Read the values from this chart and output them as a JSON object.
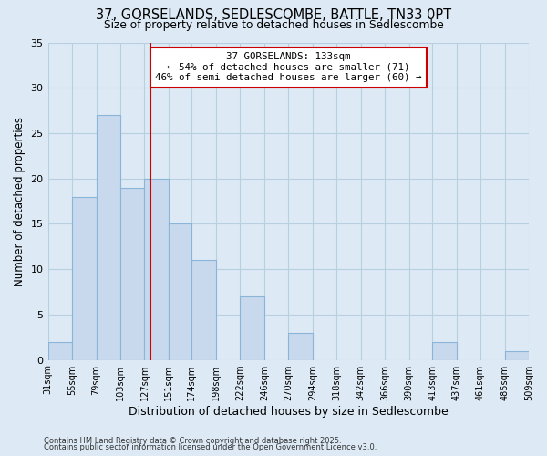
{
  "title": "37, GORSELANDS, SEDLESCOMBE, BATTLE, TN33 0PT",
  "subtitle": "Size of property relative to detached houses in Sedlescombe",
  "xlabel": "Distribution of detached houses by size in Sedlescombe",
  "ylabel": "Number of detached properties",
  "bin_labels": [
    "31sqm",
    "55sqm",
    "79sqm",
    "103sqm",
    "127sqm",
    "151sqm",
    "174sqm",
    "198sqm",
    "222sqm",
    "246sqm",
    "270sqm",
    "294sqm",
    "318sqm",
    "342sqm",
    "366sqm",
    "390sqm",
    "413sqm",
    "437sqm",
    "461sqm",
    "485sqm",
    "509sqm"
  ],
  "bar_heights": [
    2,
    18,
    27,
    19,
    20,
    15,
    11,
    0,
    7,
    0,
    3,
    0,
    0,
    0,
    0,
    0,
    2,
    0,
    0,
    1,
    0
  ],
  "bar_color": "#c8d9ee",
  "bar_edge_color": "#8ab4d8",
  "grid_color": "#b8cfe0",
  "background_color": "#ddeaf5",
  "vline_x": 133,
  "vline_color": "#cc0000",
  "annotation_title": "37 GORSELANDS: 133sqm",
  "annotation_line1": "← 54% of detached houses are smaller (71)",
  "annotation_line2": "46% of semi-detached houses are larger (60) →",
  "annotation_box_color": "#ffffff",
  "annotation_box_edge": "#cc0000",
  "bin_edges": [
    31,
    55,
    79,
    103,
    127,
    151,
    174,
    198,
    222,
    246,
    270,
    294,
    318,
    342,
    366,
    390,
    413,
    437,
    461,
    485,
    509
  ],
  "ylim": [
    0,
    35
  ],
  "yticks": [
    0,
    5,
    10,
    15,
    20,
    25,
    30,
    35
  ],
  "footer1": "Contains HM Land Registry data © Crown copyright and database right 2025.",
  "footer2": "Contains public sector information licensed under the Open Government Licence v3.0."
}
